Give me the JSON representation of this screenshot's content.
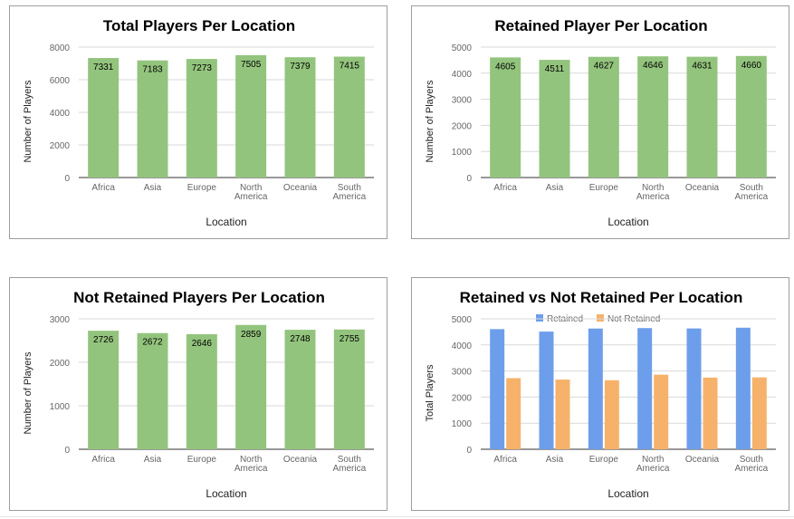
{
  "colors": {
    "bar_green": "#93c47d",
    "retained_blue": "#6d9eeb",
    "not_retained_orange": "#f6b26b",
    "grid": "#d9d9d9",
    "axis_text": "#666666",
    "title_text": "#000000"
  },
  "chart_data": [
    {
      "type": "bar",
      "title": "Total Players Per Location",
      "xlabel": "Location",
      "ylabel": "Number of Players",
      "categories": [
        "Africa",
        "Asia",
        "Europe",
        "North America",
        "Oceania",
        "South America"
      ],
      "values": [
        7331,
        7183,
        7273,
        7505,
        7379,
        7415
      ],
      "data_labels": [
        "7331",
        "7183",
        "7273",
        "7505",
        "7379",
        "7415"
      ],
      "ylim": [
        0,
        8000
      ],
      "yticks": [
        0,
        2000,
        4000,
        6000,
        8000
      ],
      "ytick_labels": [
        "0",
        "2000",
        "4000",
        "6000",
        "8000"
      ],
      "grid": true
    },
    {
      "type": "bar",
      "title": "Retained Player Per Location",
      "xlabel": "Location",
      "ylabel": "Number of Players",
      "categories": [
        "Africa",
        "Asia",
        "Europe",
        "North America",
        "Oceania",
        "South America"
      ],
      "values": [
        4605,
        4511,
        4627,
        4646,
        4631,
        4660
      ],
      "data_labels": [
        "4605",
        "4511",
        "4627",
        "4646",
        "4631",
        "4660"
      ],
      "ylim": [
        0,
        5000
      ],
      "yticks": [
        0,
        1000,
        2000,
        3000,
        4000,
        5000
      ],
      "ytick_labels": [
        "0",
        "1000",
        "2000",
        "3000",
        "4000",
        "5000"
      ],
      "grid": true
    },
    {
      "type": "bar",
      "title": "Not Retained Players Per Location",
      "xlabel": "Location",
      "ylabel": "Number of Players",
      "categories": [
        "Africa",
        "Asia",
        "Europe",
        "North America",
        "Oceania",
        "South America"
      ],
      "values": [
        2726,
        2672,
        2646,
        2859,
        2748,
        2755
      ],
      "data_labels": [
        "2726",
        "2672",
        "2646",
        "2859",
        "2748",
        "2755"
      ],
      "ylim": [
        0,
        3000
      ],
      "yticks": [
        0,
        1000,
        2000,
        3000
      ],
      "ytick_labels": [
        "0",
        "1000",
        "2000",
        "3000"
      ],
      "grid": true
    },
    {
      "type": "bar",
      "title": "Retained vs Not Retained Per Location",
      "xlabel": "Location",
      "ylabel": "Total Players",
      "categories": [
        "Africa",
        "Asia",
        "Europe",
        "North America",
        "Oceania",
        "South America"
      ],
      "series": [
        {
          "name": "Retained",
          "values": [
            4605,
            4511,
            4627,
            4646,
            4631,
            4660
          ]
        },
        {
          "name": "Not Retained",
          "values": [
            2726,
            2672,
            2646,
            2859,
            2748,
            2755
          ]
        }
      ],
      "ylim": [
        0,
        5000
      ],
      "yticks": [
        0,
        1000,
        2000,
        3000,
        4000,
        5000
      ],
      "ytick_labels": [
        "0",
        "1000",
        "2000",
        "3000",
        "4000",
        "5000"
      ],
      "legend": "top",
      "grid": true
    }
  ]
}
